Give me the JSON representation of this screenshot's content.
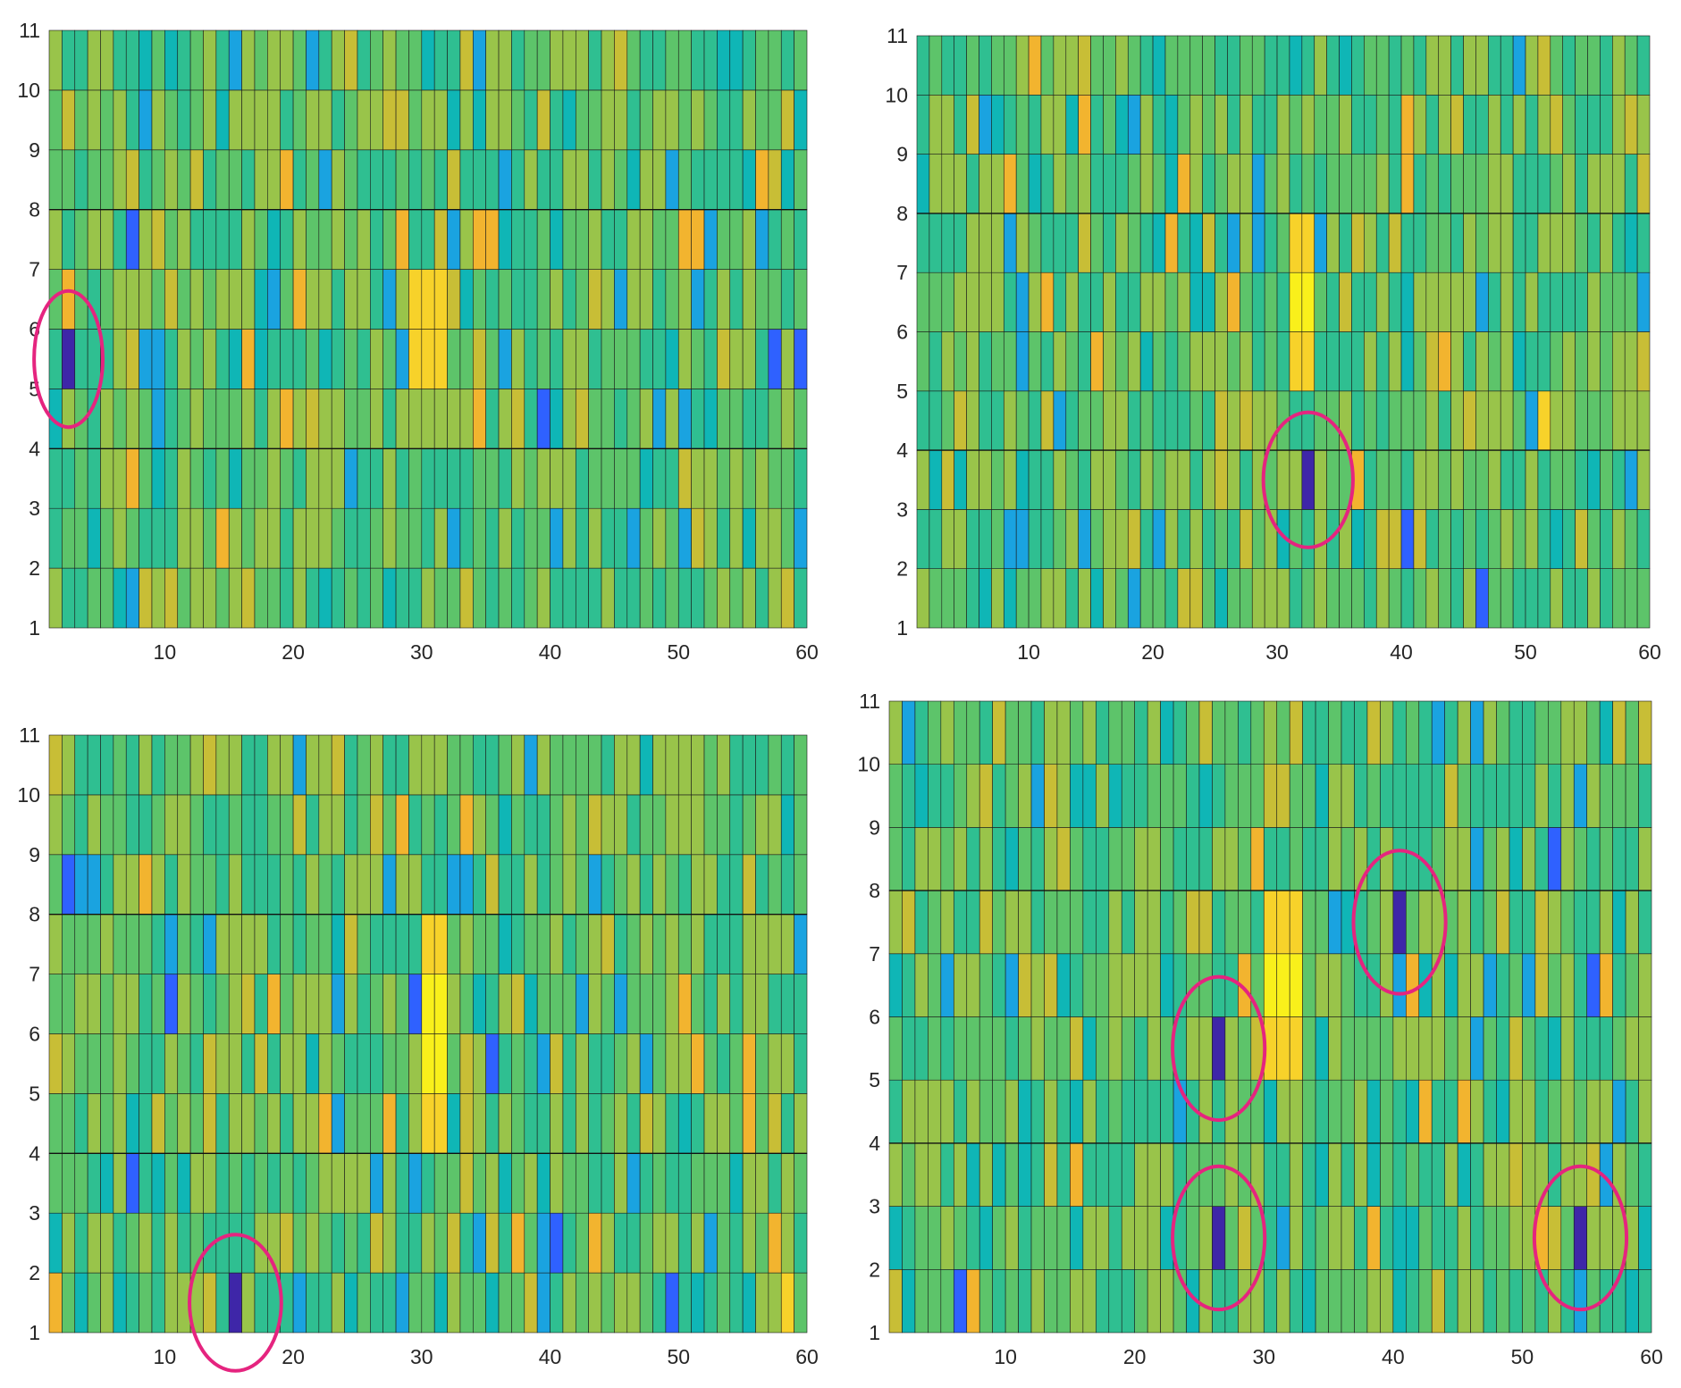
{
  "chart_data": [
    {
      "type": "heatmap",
      "title": "",
      "x_range": [
        1,
        60
      ],
      "y_range": [
        1,
        11
      ],
      "x_ticks": [
        "10",
        "20",
        "30",
        "40",
        "50",
        "60"
      ],
      "y_ticks": [
        "1",
        "2",
        "3",
        "4",
        "5",
        "6",
        "7",
        "8",
        "9",
        "10",
        "11"
      ],
      "hot_spot": {
        "x_start": 29,
        "x_end": 32,
        "y_start": 5,
        "y_end": 7
      },
      "anomalies": [
        {
          "x": 2,
          "y_start": 5,
          "y_end": 6
        }
      ]
    },
    {
      "type": "heatmap",
      "title": "",
      "x_range": [
        1,
        60
      ],
      "y_range": [
        1,
        11
      ],
      "x_ticks": [
        "10",
        "20",
        "30",
        "40",
        "50",
        "60"
      ],
      "y_ticks": [
        "1",
        "2",
        "3",
        "4",
        "5",
        "6",
        "7",
        "8",
        "9",
        "10",
        "11"
      ],
      "hot_spot": {
        "x_start": 31,
        "x_end": 33,
        "y_start": 5,
        "y_end": 8
      },
      "anomalies": [
        {
          "x": 32,
          "y_start": 3,
          "y_end": 4
        }
      ]
    },
    {
      "type": "heatmap",
      "title": "",
      "x_range": [
        1,
        60
      ],
      "y_range": [
        1,
        11
      ],
      "x_ticks": [
        "10",
        "20",
        "30",
        "40",
        "50",
        "60"
      ],
      "y_ticks": [
        "1",
        "2",
        "3",
        "4",
        "5",
        "6",
        "7",
        "8",
        "9",
        "10",
        "11"
      ],
      "hot_spot": {
        "x_start": 30,
        "x_end": 32,
        "y_start": 4,
        "y_end": 8
      },
      "anomalies": [
        {
          "x": 15,
          "y_start": 1,
          "y_end": 2
        }
      ]
    },
    {
      "type": "heatmap",
      "title": "",
      "x_range": [
        1,
        60
      ],
      "y_range": [
        1,
        11
      ],
      "x_ticks": [
        "10",
        "20",
        "30",
        "40",
        "50",
        "60"
      ],
      "y_ticks": [
        "1",
        "2",
        "3",
        "4",
        "5",
        "6",
        "7",
        "8",
        "9",
        "10",
        "11"
      ],
      "hot_spot": {
        "x_start": 30,
        "x_end": 33,
        "y_start": 5,
        "y_end": 8
      },
      "anomalies": [
        {
          "x": 26,
          "y_start": 5,
          "y_end": 6
        },
        {
          "x": 40,
          "y_start": 7,
          "y_end": 8
        },
        {
          "x": 26,
          "y_start": 2,
          "y_end": 3
        },
        {
          "x": 54,
          "y_start": 2,
          "y_end": 3
        }
      ]
    }
  ],
  "palette": [
    "#3e26a8",
    "#2f61ff",
    "#1aa3e0",
    "#0fb6b6",
    "#2fbf91",
    "#5dc46a",
    "#99c44a",
    "#c8be36",
    "#f2b42f",
    "#f7d22a",
    "#f9f01b"
  ],
  "highlight_color": "#e5247f"
}
